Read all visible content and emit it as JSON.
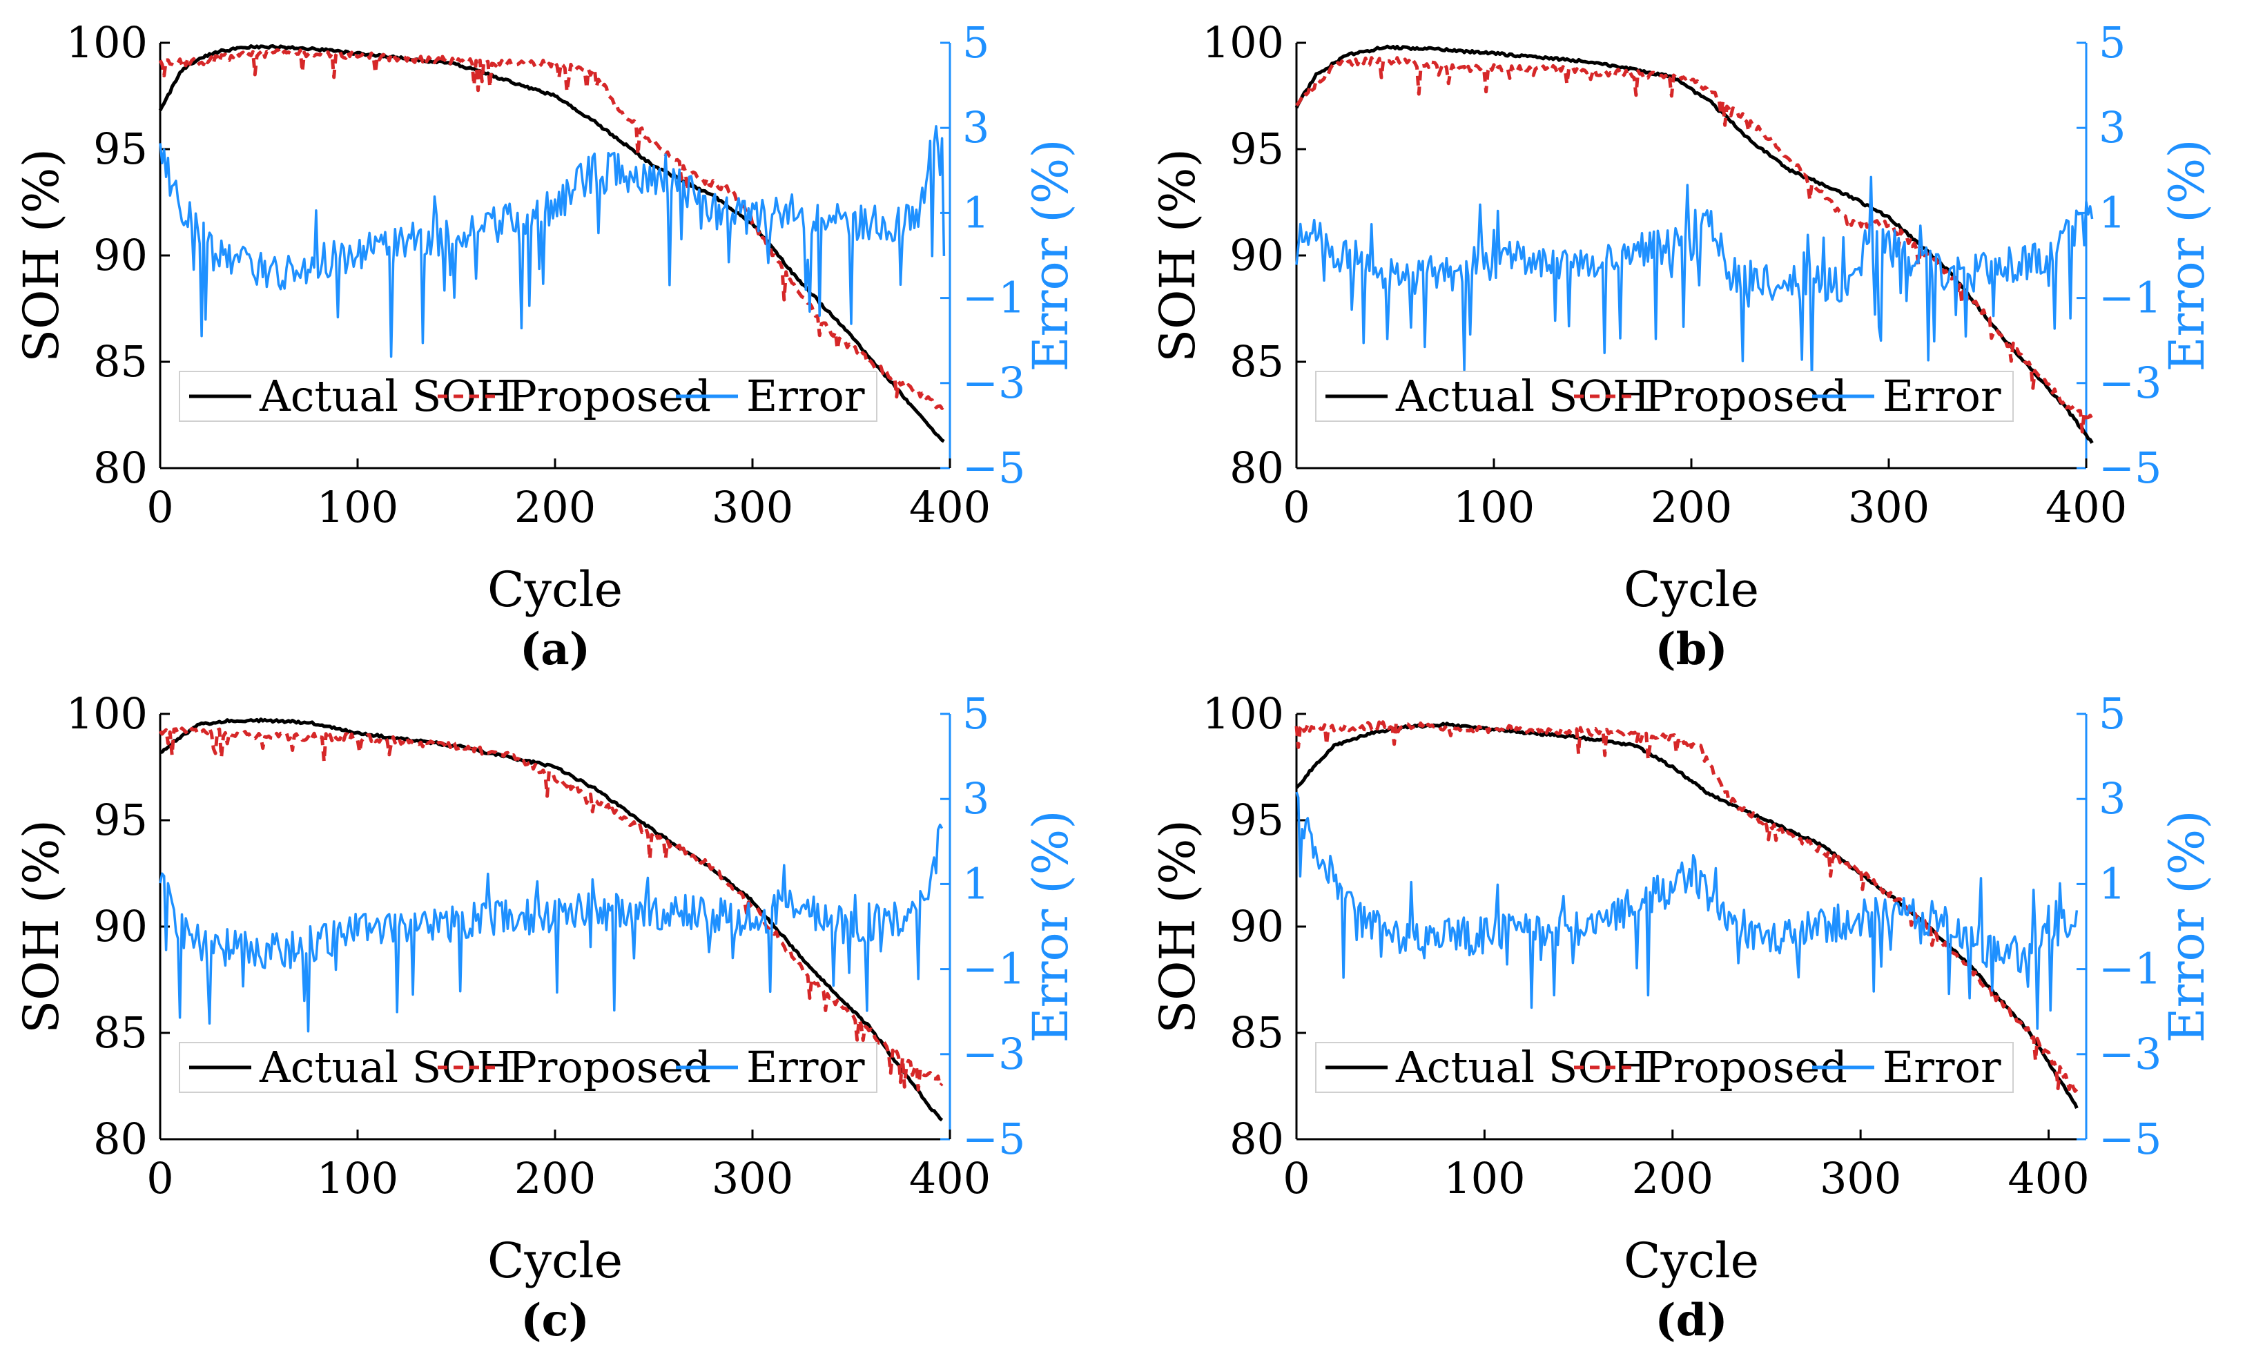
{
  "colors": {
    "actual": "#000000",
    "proposed": "#d62728",
    "error": "#1e90ff",
    "axis": "#000000",
    "error_axis": "#1e90ff",
    "background": "#ffffff"
  },
  "legend_labels": [
    "Actual SOH",
    "Proposed",
    "Error"
  ],
  "chart_data": [
    {
      "id": "a",
      "caption": "(a)",
      "type": "line",
      "xlabel": "Cycle",
      "ylabel": "SOH (%)",
      "y2label": "Error (%)",
      "xlim": [
        0,
        400
      ],
      "ylim": [
        80,
        100
      ],
      "y2lim": [
        -5,
        5
      ],
      "xticks": [
        0,
        100,
        200,
        300,
        400
      ],
      "yticks": [
        80,
        85,
        90,
        95,
        100
      ],
      "y2ticks": [
        -5,
        -3,
        -1,
        1,
        3,
        5
      ],
      "n_cycles": 397,
      "legend_position": "bottom-left",
      "series": [
        {
          "name": "Actual SOH",
          "axis": "left",
          "style": "solid",
          "x": [
            0,
            10,
            20,
            30,
            45,
            60,
            80,
            100,
            150,
            200,
            220,
            250,
            280,
            300,
            320,
            350,
            380,
            397
          ],
          "values": [
            96.8,
            98.6,
            99.3,
            99.6,
            99.8,
            99.8,
            99.7,
            99.5,
            99.0,
            97.5,
            96.3,
            94.2,
            92.8,
            91.5,
            89.2,
            86.2,
            83.0,
            81.2
          ]
        },
        {
          "name": "Proposed",
          "axis": "left",
          "style": "dashed",
          "x": [
            0,
            20,
            45,
            80,
            120,
            160,
            200,
            220,
            235,
            250,
            270,
            290,
            300,
            320,
            340,
            370,
            397
          ],
          "values": [
            99.1,
            99.1,
            99.5,
            99.5,
            99.3,
            99.1,
            99.0,
            98.6,
            96.6,
            95.3,
            93.8,
            93.0,
            91.6,
            88.6,
            86.4,
            84.3,
            82.8
          ]
        },
        {
          "name": "Error",
          "axis": "right",
          "style": "solid",
          "x": [
            0,
            10,
            20,
            30,
            40,
            50,
            60,
            70,
            80,
            100,
            150,
            200,
            210,
            220,
            250,
            280,
            300,
            320,
            340,
            370,
            385,
            392,
            397
          ],
          "values": [
            2.4,
            1.2,
            0.5,
            0.1,
            -0.2,
            -0.3,
            -0.4,
            -0.4,
            -0.2,
            0.1,
            0.5,
            1.1,
            1.6,
            2.0,
            1.9,
            1.2,
            0.9,
            1.0,
            0.8,
            0.7,
            1.0,
            2.8,
            1.8
          ]
        }
      ]
    },
    {
      "id": "b",
      "caption": "(b)",
      "type": "line",
      "xlabel": "Cycle",
      "ylabel": "SOH (%)",
      "y2label": "Error (%)",
      "xlim": [
        0,
        400
      ],
      "ylim": [
        80,
        100
      ],
      "y2lim": [
        -5,
        5
      ],
      "xticks": [
        0,
        100,
        200,
        300,
        400
      ],
      "yticks": [
        80,
        85,
        90,
        95,
        100
      ],
      "y2ticks": [
        -5,
        -3,
        -1,
        1,
        3,
        5
      ],
      "n_cycles": 403,
      "legend_position": "bottom-left",
      "series": [
        {
          "name": "Actual SOH",
          "axis": "left",
          "style": "solid",
          "x": [
            0,
            10,
            25,
            45,
            70,
            100,
            150,
            190,
            210,
            230,
            250,
            280,
            300,
            330,
            360,
            390,
            403
          ],
          "values": [
            97.0,
            98.5,
            99.4,
            99.8,
            99.7,
            99.5,
            99.1,
            98.4,
            97.2,
            95.4,
            94.0,
            92.8,
            91.8,
            89.3,
            85.9,
            82.8,
            81.2
          ]
        },
        {
          "name": "Proposed",
          "axis": "left",
          "style": "dashed",
          "x": [
            0,
            20,
            45,
            80,
            120,
            160,
            200,
            215,
            240,
            260,
            280,
            300,
            330,
            360,
            390,
            403
          ],
          "values": [
            97.2,
            99.0,
            99.2,
            98.8,
            98.8,
            98.6,
            98.3,
            97.3,
            95.5,
            93.5,
            91.5,
            91.5,
            89.2,
            86.0,
            83.0,
            82.3
          ]
        },
        {
          "name": "Error",
          "axis": "right",
          "style": "solid",
          "x": [
            0,
            5,
            15,
            30,
            50,
            80,
            100,
            150,
            200,
            210,
            220,
            240,
            260,
            280,
            290,
            300,
            330,
            360,
            380,
            395,
            403
          ],
          "values": [
            0.1,
            0.6,
            0.2,
            -0.1,
            -0.5,
            -0.4,
            -0.1,
            -0.1,
            0.3,
            0.7,
            -0.4,
            -0.6,
            -0.7,
            -0.7,
            0.4,
            0.2,
            -0.4,
            -0.2,
            -0.1,
            0.7,
            1.0
          ]
        }
      ]
    },
    {
      "id": "c",
      "caption": "(c)",
      "type": "line",
      "xlabel": "Cycle",
      "ylabel": "SOH (%)",
      "y2label": "Error (%)",
      "xlim": [
        0,
        400
      ],
      "ylim": [
        80,
        100
      ],
      "y2lim": [
        -5,
        5
      ],
      "xticks": [
        0,
        100,
        200,
        300,
        400
      ],
      "yticks": [
        80,
        85,
        90,
        95,
        100
      ],
      "y2ticks": [
        -5,
        -3,
        -1,
        1,
        3,
        5
      ],
      "n_cycles": 396,
      "legend_position": "bottom-left",
      "series": [
        {
          "name": "Actual SOH",
          "axis": "left",
          "style": "solid",
          "x": [
            0,
            10,
            20,
            35,
            50,
            75,
            100,
            150,
            200,
            220,
            250,
            280,
            300,
            330,
            360,
            390,
            396
          ],
          "values": [
            98.2,
            98.9,
            99.5,
            99.7,
            99.7,
            99.6,
            99.1,
            98.5,
            97.5,
            96.5,
            94.5,
            92.7,
            91.2,
            88.0,
            85.2,
            81.5,
            80.9
          ]
        },
        {
          "name": "Proposed",
          "axis": "left",
          "style": "dashed",
          "x": [
            0,
            20,
            50,
            80,
            100,
            150,
            180,
            200,
            220,
            240,
            260,
            280,
            300,
            330,
            360,
            380,
            396
          ],
          "values": [
            99.2,
            99.2,
            99.0,
            98.9,
            98.9,
            98.5,
            98.0,
            97.0,
            96.0,
            94.8,
            93.8,
            92.8,
            91.0,
            87.5,
            85.0,
            83.5,
            82.7
          ]
        },
        {
          "name": "Error",
          "axis": "right",
          "style": "solid",
          "x": [
            0,
            10,
            20,
            40,
            60,
            80,
            100,
            150,
            200,
            250,
            300,
            320,
            350,
            380,
            390,
            396
          ],
          "values": [
            1.0,
            0.0,
            -0.4,
            -0.5,
            -0.6,
            -0.4,
            -0.1,
            0.1,
            0.3,
            0.4,
            0.2,
            0.4,
            0.0,
            0.3,
            1.0,
            2.4
          ]
        }
      ]
    },
    {
      "id": "d",
      "caption": "(d)",
      "type": "line",
      "xlabel": "Cycle",
      "ylabel": "SOH (%)",
      "y2label": "Error (%)",
      "xlim": [
        0,
        420
      ],
      "ylim": [
        80,
        100
      ],
      "y2lim": [
        -5,
        5
      ],
      "xticks": [
        0,
        100,
        200,
        300,
        400
      ],
      "yticks": [
        80,
        85,
        90,
        95,
        100
      ],
      "y2ticks": [
        -5,
        -3,
        -1,
        1,
        3,
        5
      ],
      "n_cycles": 415,
      "legend_position": "bottom-left",
      "series": [
        {
          "name": "Actual SOH",
          "axis": "left",
          "style": "solid",
          "x": [
            0,
            10,
            20,
            40,
            60,
            80,
            100,
            150,
            180,
            200,
            220,
            250,
            280,
            300,
            330,
            360,
            390,
            415
          ],
          "values": [
            96.5,
            97.6,
            98.5,
            99.1,
            99.4,
            99.5,
            99.3,
            98.9,
            98.5,
            97.5,
            96.2,
            95.0,
            93.8,
            92.5,
            90.5,
            88.0,
            85.0,
            81.5
          ]
        },
        {
          "name": "Proposed",
          "axis": "left",
          "style": "dashed",
          "x": [
            0,
            30,
            60,
            100,
            150,
            200,
            215,
            230,
            250,
            270,
            300,
            330,
            360,
            390,
            415
          ],
          "values": [
            99.3,
            99.4,
            99.5,
            99.3,
            99.2,
            98.9,
            98.4,
            96.0,
            94.8,
            94.0,
            92.6,
            90.5,
            87.8,
            85.0,
            82.3
          ]
        },
        {
          "name": "Error",
          "axis": "right",
          "style": "solid",
          "x": [
            0,
            10,
            20,
            30,
            40,
            50,
            70,
            100,
            150,
            200,
            210,
            220,
            240,
            260,
            300,
            330,
            350,
            370,
            390,
            400,
            415
          ],
          "values": [
            2.8,
            1.8,
            1.0,
            0.4,
            0.0,
            -0.2,
            -0.3,
            -0.2,
            0.0,
            0.9,
            1.3,
            0.7,
            -0.1,
            -0.2,
            0.2,
            0.3,
            0.0,
            -0.6,
            -0.7,
            -0.2,
            0.3
          ]
        }
      ]
    }
  ]
}
